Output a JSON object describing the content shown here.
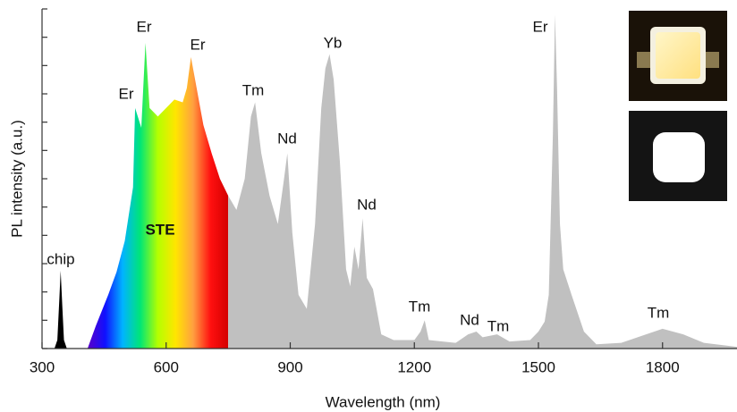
{
  "chart_data": {
    "type": "area",
    "xlabel": "Wavelength (nm)",
    "ylabel": "PL intensity (a.u.)",
    "xlim": [
      300,
      1980
    ],
    "xticks": [
      300,
      600,
      900,
      1200,
      1500,
      1800
    ],
    "ylim": [
      0,
      12
    ],
    "yticks": [
      0,
      1,
      2,
      3,
      4,
      5,
      6,
      7,
      8,
      9,
      10,
      11,
      12
    ],
    "series": [
      {
        "color": "#000000",
        "x": [
          330,
          337,
          342,
          345,
          349,
          353,
          360
        ],
        "values": [
          0,
          0.3,
          1.8,
          2.75,
          1.5,
          0.3,
          0
        ]
      },
      {
        "color": "#ff0000",
        "gradient": [
          "#5a00c8",
          "#1010ff",
          "#00b4ff",
          "#00e676",
          "#b4ff00",
          "#ffe600",
          "#ffa040",
          "#ff1010",
          "#d40000"
        ],
        "x": [
          410,
          430,
          460,
          480,
          500,
          520,
          525,
          540,
          550,
          560,
          580,
          600,
          620,
          640,
          650,
          660,
          670,
          690,
          710,
          730,
          750
        ],
        "values": [
          0,
          0.8,
          1.9,
          2.7,
          3.8,
          5.7,
          8.5,
          7.8,
          10.8,
          8.5,
          8.2,
          8.5,
          8.8,
          8.7,
          9.2,
          10.3,
          9.5,
          7.9,
          6.9,
          6.0,
          5.4
        ]
      },
      {
        "color": "#c0c0c0",
        "x": [
          750,
          770,
          790,
          805,
          815,
          830,
          850,
          870,
          885,
          893,
          905,
          920,
          940,
          960,
          975,
          985,
          995,
          1005,
          1020,
          1035,
          1045,
          1055,
          1065,
          1075,
          1085,
          1100,
          1120,
          1150,
          1200,
          1215,
          1225,
          1235,
          1300,
          1330,
          1350,
          1365,
          1400,
          1430,
          1480,
          1500,
          1515,
          1525,
          1535,
          1540,
          1545,
          1552,
          1560,
          1580,
          1610,
          1640,
          1700,
          1750,
          1800,
          1850,
          1900,
          1980
        ],
        "values": [
          5.4,
          4.9,
          6.0,
          8.2,
          8.7,
          6.9,
          5.4,
          4.4,
          6.0,
          6.9,
          4.1,
          1.9,
          1.4,
          4.4,
          8.5,
          9.9,
          10.4,
          9.5,
          6.6,
          2.8,
          2.2,
          3.6,
          2.8,
          4.6,
          2.5,
          2.1,
          0.5,
          0.3,
          0.3,
          0.6,
          1.0,
          0.3,
          0.2,
          0.5,
          0.6,
          0.4,
          0.5,
          0.25,
          0.3,
          0.6,
          0.95,
          1.9,
          7.6,
          11.8,
          9.2,
          4.4,
          2.8,
          1.9,
          0.6,
          0.15,
          0.2,
          0.45,
          0.7,
          0.5,
          0.2,
          0.06
        ]
      }
    ],
    "annotations": [
      "chip",
      "Er",
      "Er",
      "Er",
      "STE",
      "Tm",
      "Nd",
      "Yb",
      "Nd",
      "Tm",
      "Nd",
      "Tm",
      "Er",
      "Tm"
    ]
  }
}
